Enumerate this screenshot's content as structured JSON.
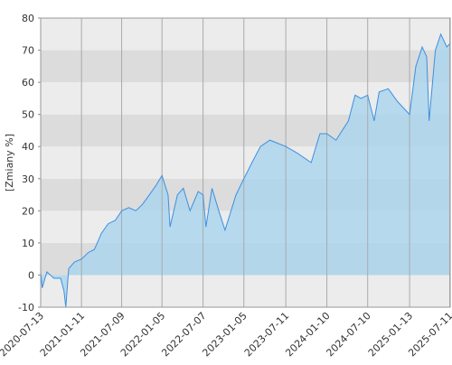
{
  "chart_data": {
    "type": "area",
    "y_label": "[Zmiany %]",
    "x": [
      "2020-07-13",
      "2020-07-20",
      "2020-08-10",
      "2020-09-10",
      "2020-10-10",
      "2020-10-25",
      "2020-11-02",
      "2020-11-15",
      "2020-12-10",
      "2021-01-11",
      "2021-02-10",
      "2021-03-10",
      "2021-04-10",
      "2021-05-10",
      "2021-06-10",
      "2021-07-09",
      "2021-08-10",
      "2021-09-10",
      "2021-10-10",
      "2021-11-10",
      "2021-12-10",
      "2022-01-05",
      "2022-02-01",
      "2022-02-10",
      "2022-03-15",
      "2022-04-10",
      "2022-05-10",
      "2022-06-15",
      "2022-07-07",
      "2022-07-20",
      "2022-08-16",
      "2022-09-15",
      "2022-10-13",
      "2022-12-01",
      "2023-01-05",
      "2023-02-10",
      "2023-03-20",
      "2023-05-01",
      "2023-07-11",
      "2023-08-30",
      "2023-11-01",
      "2023-12-10",
      "2024-01-10",
      "2024-02-20",
      "2024-04-15",
      "2024-05-15",
      "2024-06-10",
      "2024-07-10",
      "2024-08-08",
      "2024-08-30",
      "2024-10-10",
      "2024-11-20",
      "2025-01-13",
      "2025-02-10",
      "2025-03-10",
      "2025-03-30",
      "2025-04-10",
      "2025-05-08",
      "2025-06-01",
      "2025-06-28",
      "2025-07-11"
    ],
    "values": [
      1,
      -4,
      1,
      -1,
      -1,
      -5,
      -10,
      2,
      4,
      5,
      7,
      8,
      13,
      16,
      17,
      20,
      21,
      20,
      22,
      25,
      28,
      31,
      25,
      15,
      25,
      27,
      20,
      26,
      25,
      15,
      27,
      20,
      14,
      25,
      30,
      35,
      40,
      42,
      40,
      38,
      35,
      44,
      44,
      42,
      48,
      56,
      55,
      56,
      48,
      57,
      58,
      54,
      50,
      65,
      71,
      68,
      48,
      70,
      75,
      71,
      72
    ],
    "color": "#3d8fe0",
    "fill": "#a9d4ee",
    "xlim": [
      "2020-07-13",
      "2025-07-13"
    ],
    "ylim": [
      -10,
      80
    ],
    "yticks": [
      -10,
      0,
      10,
      20,
      30,
      40,
      50,
      60,
      70,
      80
    ],
    "xticks": [
      "2020-07-13",
      "2021-01-11",
      "2021-07-09",
      "2022-01-05",
      "2022-07-07",
      "2023-01-05",
      "2023-07-11",
      "2024-01-10",
      "2024-07-10",
      "2025-01-13",
      "2025-07-11"
    ],
    "grid": true
  }
}
